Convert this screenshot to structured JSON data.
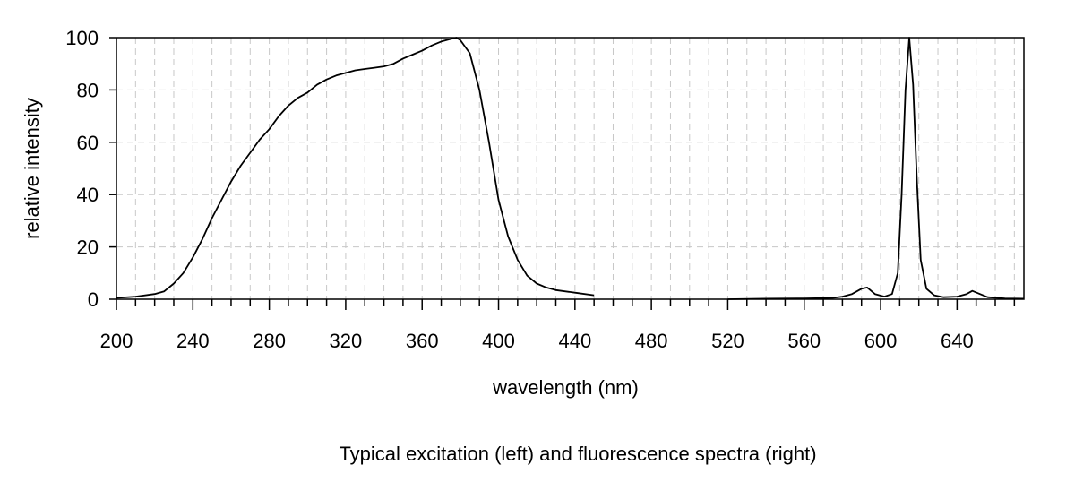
{
  "chart_data": {
    "type": "line",
    "title": "",
    "caption": "Typical excitation (left) and fluorescence spectra (right)",
    "xlabel": "wavelength (nm)",
    "ylabel": "relative intensity",
    "xlim": [
      200,
      675
    ],
    "ylim": [
      0,
      100
    ],
    "xticks": [
      200,
      240,
      280,
      320,
      360,
      400,
      440,
      480,
      520,
      560,
      600,
      640
    ],
    "yticks": [
      0,
      20,
      40,
      60,
      80,
      100
    ],
    "x_minor_step": 10,
    "grid": true,
    "legend": "none",
    "series": [
      {
        "role": "excitation",
        "points": [
          [
            200,
            0.5
          ],
          [
            210,
            1
          ],
          [
            220,
            2
          ],
          [
            225,
            3
          ],
          [
            230,
            6
          ],
          [
            235,
            10
          ],
          [
            240,
            16
          ],
          [
            245,
            23
          ],
          [
            250,
            31
          ],
          [
            255,
            38
          ],
          [
            260,
            45
          ],
          [
            265,
            51
          ],
          [
            270,
            56
          ],
          [
            275,
            61
          ],
          [
            280,
            65
          ],
          [
            285,
            70
          ],
          [
            290,
            74
          ],
          [
            295,
            77
          ],
          [
            300,
            79
          ],
          [
            305,
            82
          ],
          [
            310,
            84
          ],
          [
            315,
            85.5
          ],
          [
            320,
            86.5
          ],
          [
            325,
            87.5
          ],
          [
            330,
            88
          ],
          [
            335,
            88.5
          ],
          [
            340,
            89
          ],
          [
            345,
            90
          ],
          [
            350,
            92
          ],
          [
            355,
            93.5
          ],
          [
            360,
            95
          ],
          [
            365,
            97
          ],
          [
            370,
            98.5
          ],
          [
            375,
            99.5
          ],
          [
            378,
            100
          ],
          [
            380,
            99
          ],
          [
            385,
            94
          ],
          [
            390,
            80
          ],
          [
            395,
            60
          ],
          [
            400,
            38
          ],
          [
            405,
            24
          ],
          [
            410,
            15
          ],
          [
            415,
            9
          ],
          [
            420,
            6
          ],
          [
            425,
            4.5
          ],
          [
            430,
            3.5
          ],
          [
            440,
            2.5
          ],
          [
            450,
            1.5
          ]
        ]
      },
      {
        "role": "fluorescence",
        "points": [
          [
            520,
            0
          ],
          [
            540,
            0.2
          ],
          [
            560,
            0.3
          ],
          [
            575,
            0.5
          ],
          [
            580,
            1
          ],
          [
            585,
            2
          ],
          [
            590,
            4
          ],
          [
            593,
            4.5
          ],
          [
            597,
            2
          ],
          [
            602,
            1
          ],
          [
            606,
            2
          ],
          [
            609,
            10
          ],
          [
            611,
            40
          ],
          [
            613,
            80
          ],
          [
            615,
            100
          ],
          [
            617,
            82
          ],
          [
            619,
            45
          ],
          [
            621,
            15
          ],
          [
            624,
            4
          ],
          [
            628,
            1.5
          ],
          [
            633,
            0.8
          ],
          [
            640,
            1
          ],
          [
            645,
            2
          ],
          [
            648,
            3.2
          ],
          [
            652,
            2
          ],
          [
            656,
            0.8
          ],
          [
            665,
            0.3
          ],
          [
            675,
            0.2
          ]
        ]
      }
    ]
  }
}
